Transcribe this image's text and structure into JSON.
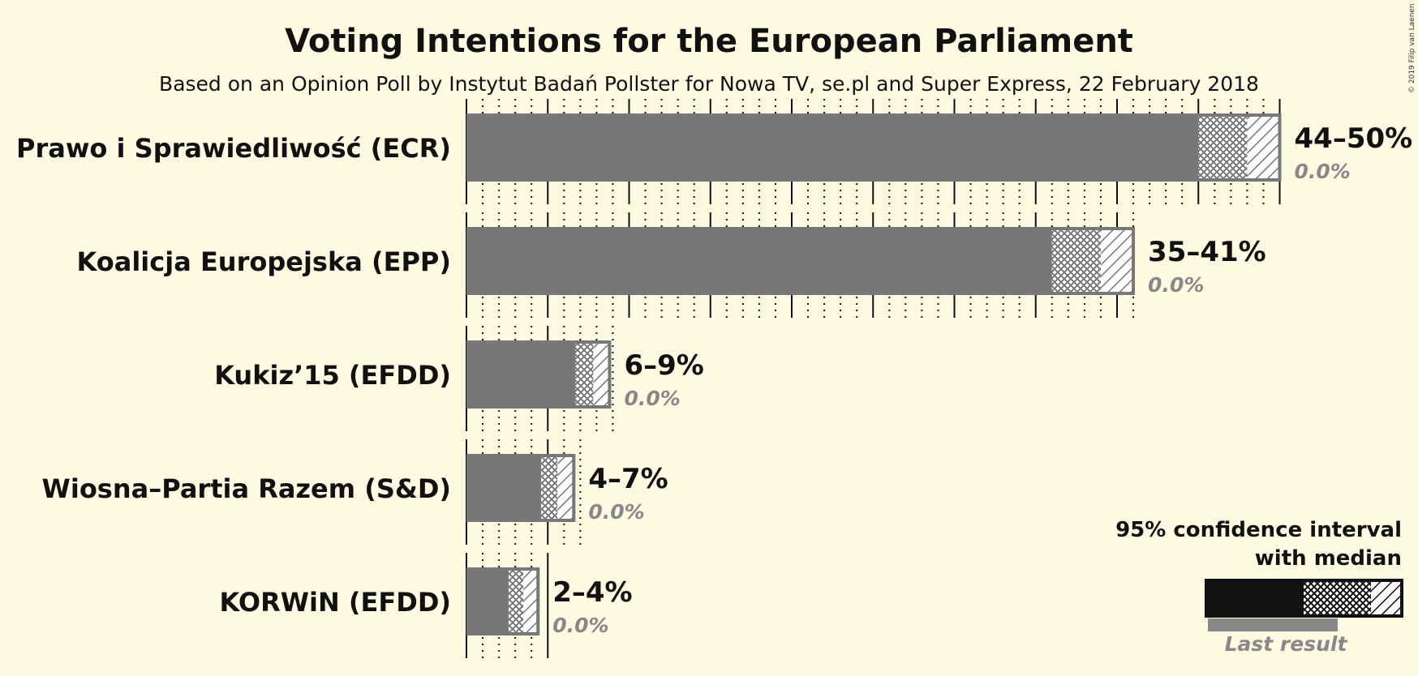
{
  "title": "Voting Intentions for the European Parliament",
  "subtitle": "Based on an Opinion Poll by Instytut Badań Pollster for Nowa TV, se.pl and Super Express, 22 February 2018",
  "copyright": "© 2019 Filip van Laenen",
  "legend": {
    "line1": "95% confidence interval",
    "line2": "with median",
    "last_result": "Last result"
  },
  "colors": {
    "background": "#fefbe3",
    "bar": "#777777",
    "legend_bar": "#111111",
    "last_result": "#888888"
  },
  "chart_data": {
    "type": "bar",
    "orientation": "horizontal",
    "categories": [
      "Prawo i Sprawiedliwość (ECR)",
      "Koalicja Europejska (EPP)",
      "Kukiz’15 (EFDD)",
      "Wiosna–Partia Razem (S&D)",
      "KORWiN (EFDD)"
    ],
    "ci95_low": [
      44,
      35,
      6,
      4,
      2.2
    ],
    "ci80_low": [
      45,
      36,
      6.7,
      4.6,
      2.6
    ],
    "median": [
      47,
      38,
      7.1,
      5.2,
      3.2
    ],
    "ci80_high": [
      48,
      39,
      7.8,
      5.6,
      3.5
    ],
    "ci95_high": [
      50,
      41,
      8.8,
      6.6,
      4.4
    ],
    "range_labels": [
      "44–50%",
      "35–41%",
      "6–9%",
      "4–7%",
      "2–4%"
    ],
    "last_result_labels": [
      "0.0%",
      "0.0%",
      "0.0%",
      "0.0%",
      "0.0%"
    ],
    "last_result_values": [
      0,
      0,
      0,
      0,
      0
    ],
    "xlim": [
      0,
      50
    ]
  }
}
